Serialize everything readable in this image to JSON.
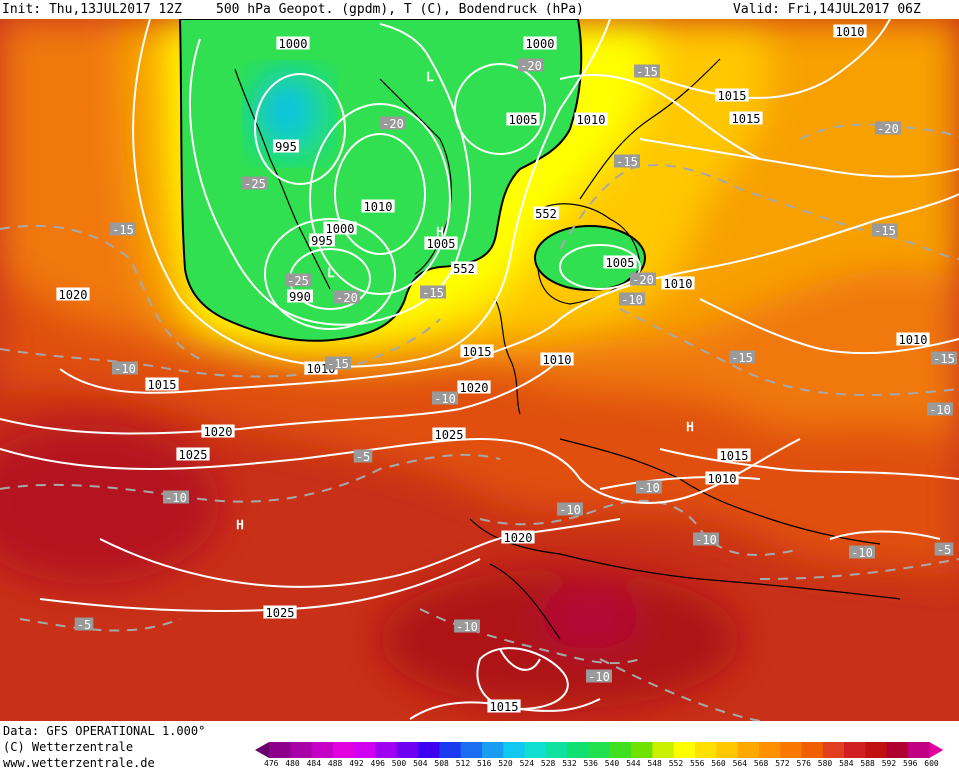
{
  "header": {
    "init": "Init: Thu,13JUL2017 12Z",
    "title": "500 hPa Geopot. (gpdm), T (C), Bodendruck (hPa)",
    "valid": "Valid: Fri,14JUL2017 06Z"
  },
  "footer": {
    "data_source": "Data: GFS OPERATIONAL 1.000°",
    "copyright": "(C) Wetterzentrale",
    "website": "www.wetterzentrale.de"
  },
  "colors": {
    "background": "#ffffff",
    "isobar": "#ffffff",
    "temperature_isoline": "#a8a8a8",
    "contour_552": "#000000"
  },
  "scale": {
    "values": [
      "476",
      "480",
      "484",
      "488",
      "492",
      "496",
      "500",
      "504",
      "508",
      "512",
      "516",
      "520",
      "524",
      "528",
      "532",
      "536",
      "540",
      "544",
      "548",
      "552",
      "556",
      "560",
      "564",
      "568",
      "572",
      "576",
      "580",
      "584",
      "588",
      "592",
      "596",
      "600"
    ],
    "colors": [
      "#6a006a",
      "#8a008a",
      "#a800a8",
      "#c400c4",
      "#e000e0",
      "#d000f0",
      "#a000f0",
      "#7000f0",
      "#4000f0",
      "#1a3cf0",
      "#1a6cf0",
      "#1a9cf0",
      "#10c8f0",
      "#10e0d0",
      "#10e0a0",
      "#10e070",
      "#20e050",
      "#40e020",
      "#70e000",
      "#c8f000",
      "#ffff00",
      "#ffe000",
      "#ffc800",
      "#ffa800",
      "#ff9000",
      "#f87800",
      "#f06000",
      "#e04020",
      "#d02020",
      "#c01010",
      "#b00030",
      "#c00080",
      "#e000a0"
    ]
  },
  "map": {
    "pressure_labels": [
      {
        "text": "1000"
      },
      {
        "text": "1000"
      },
      {
        "text": "1010"
      },
      {
        "text": "1015"
      },
      {
        "text": "1015"
      },
      {
        "text": "1005"
      },
      {
        "text": "1010"
      },
      {
        "text": "995"
      },
      {
        "text": "1010"
      },
      {
        "text": "1000"
      },
      {
        "text": "995"
      },
      {
        "text": "1005"
      },
      {
        "text": "990"
      },
      {
        "text": "1005"
      },
      {
        "text": "1010"
      },
      {
        "text": "1020"
      },
      {
        "text": "1015"
      },
      {
        "text": "1010"
      },
      {
        "text": "1010"
      },
      {
        "text": "1015"
      },
      {
        "text": "1020"
      },
      {
        "text": "1010"
      },
      {
        "text": "1020"
      },
      {
        "text": "1025"
      },
      {
        "text": "1025"
      },
      {
        "text": "1015"
      },
      {
        "text": "1010"
      },
      {
        "text": "1020"
      },
      {
        "text": "1025"
      },
      {
        "text": "1015"
      }
    ],
    "temperature_labels": [
      {
        "text": "-20"
      },
      {
        "text": "-15"
      },
      {
        "text": "-20"
      },
      {
        "text": "-20"
      },
      {
        "text": "-25"
      },
      {
        "text": "-15"
      },
      {
        "text": "-15"
      },
      {
        "text": "-15"
      },
      {
        "text": "-25"
      },
      {
        "text": "-20"
      },
      {
        "text": "-15"
      },
      {
        "text": "-20"
      },
      {
        "text": "-15"
      },
      {
        "text": "-10"
      },
      {
        "text": "-15"
      },
      {
        "text": "-15"
      },
      {
        "text": "-10"
      },
      {
        "text": "-5"
      },
      {
        "text": "-10"
      },
      {
        "text": "-10"
      },
      {
        "text": "-10"
      },
      {
        "text": "-10"
      },
      {
        "text": "-10"
      },
      {
        "text": "-5"
      },
      {
        "text": "-5"
      },
      {
        "text": "-10"
      },
      {
        "text": "-10"
      },
      {
        "text": "-10"
      },
      {
        "text": "-10"
      }
    ],
    "height_labels": [
      {
        "text": "552"
      },
      {
        "text": "552"
      }
    ],
    "pressure_centers": [
      {
        "letter": "L"
      },
      {
        "letter": "H"
      },
      {
        "letter": "L"
      },
      {
        "letter": "H"
      },
      {
        "letter": "H"
      }
    ]
  }
}
